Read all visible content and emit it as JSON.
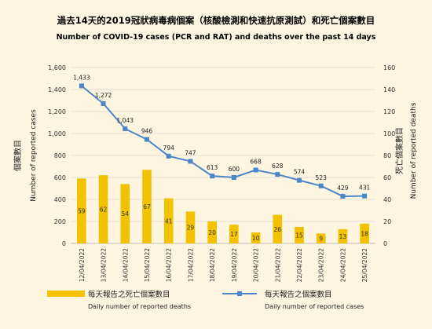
{
  "chart_data": {
    "type": "bar-line",
    "title": "過去14天的2019冠狀病毒病個案（核酸檢測和快速抗原測試）和死亡個案數目",
    "subtitle": "Number of COVID-19 cases (PCR and RAT) and deaths over the past 14 days",
    "categories": [
      "12/04/2022",
      "13/04/2022",
      "14/04/2022",
      "15/04/2022",
      "16/04/2022",
      "17/04/2022",
      "18/04/2022",
      "19/04/2022",
      "20/04/2022",
      "21/04/2022",
      "22/04/2022",
      "23/04/2022",
      "24/04/2022",
      "25/04/2022"
    ],
    "left_axis": {
      "label_zh": "個案數目",
      "label_en": "Number of reported cases",
      "ylim": [
        0,
        1600
      ],
      "ticks": [
        "0",
        "200",
        "400",
        "600",
        "800",
        "1,000",
        "1,200",
        "1,400",
        "1,600"
      ]
    },
    "right_axis": {
      "label_zh": "死亡個案數目",
      "label_en": "Number of reported deaths",
      "ylim": [
        0,
        160
      ],
      "ticks": [
        "0",
        "20",
        "40",
        "60",
        "80",
        "100",
        "120",
        "140",
        "160"
      ]
    },
    "series": [
      {
        "name": "每天報告之死亡個案數目",
        "name_en": "Daily number of reported deaths",
        "type": "bar",
        "axis": "right",
        "color": "#f2c200",
        "values": [
          59,
          62,
          54,
          67,
          41,
          29,
          20,
          17,
          10,
          26,
          15,
          9,
          13,
          18
        ],
        "labels": [
          "59",
          "62",
          "54",
          "67",
          "41",
          "29",
          "20",
          "17",
          "10",
          "26",
          "15",
          "9",
          "13",
          "18"
        ]
      },
      {
        "name": "每天報告之個案數目",
        "name_en": "Daily number of reported cases",
        "type": "line",
        "axis": "left",
        "color": "#4a86c8",
        "values": [
          1433,
          1272,
          1043,
          946,
          794,
          747,
          613,
          600,
          668,
          628,
          574,
          523,
          429,
          431
        ],
        "labels": [
          "1,433",
          "1,272",
          "1,043",
          "946",
          "794",
          "747",
          "613",
          "600",
          "668",
          "628",
          "574",
          "523",
          "429",
          "431"
        ]
      }
    ],
    "grid": true,
    "legend_position": "bottom"
  }
}
